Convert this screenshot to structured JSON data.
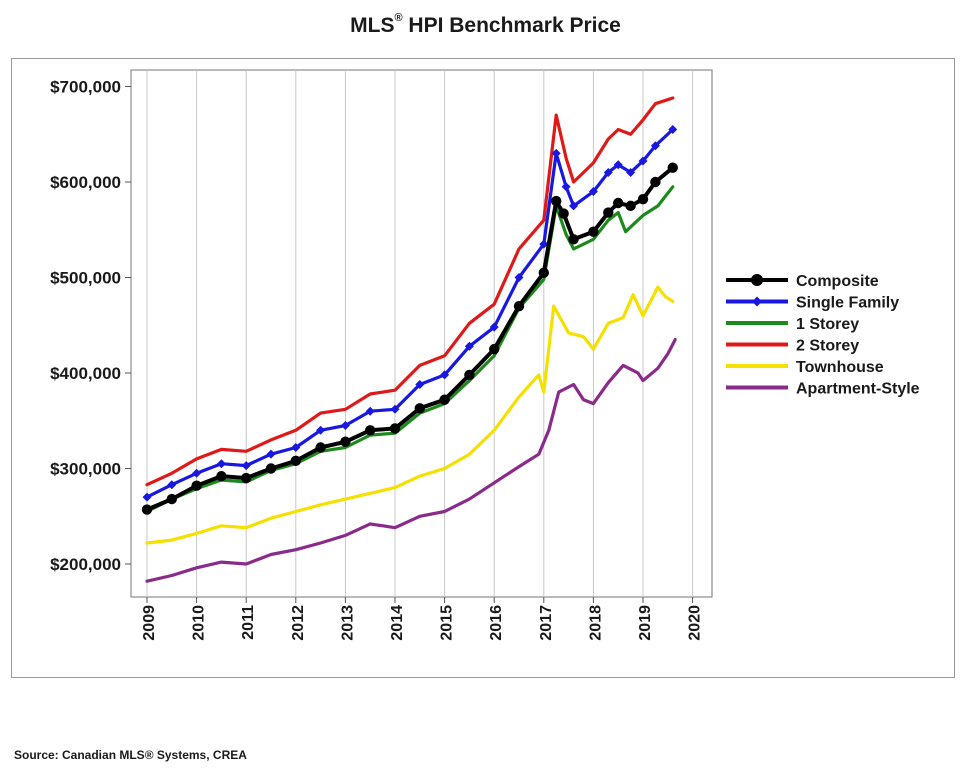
{
  "title": {
    "main": "MLS",
    "mark": "®",
    "rest": " HPI Benchmark Price"
  },
  "source": "Source: Canadian MLS® Systems, CREA",
  "chart_data": {
    "type": "line",
    "title": "MLS® HPI Benchmark Price",
    "xlabel": "",
    "ylabel": "",
    "xlim": [
      2009,
      2020
    ],
    "ylim": [
      180000,
      715000
    ],
    "x_ticks": [
      "2009",
      "2010",
      "2011",
      "2012",
      "2013",
      "2014",
      "2015",
      "2016",
      "2017",
      "2018",
      "2019",
      "2020"
    ],
    "y_ticks": [
      {
        "value": 200000,
        "label": "$200,000"
      },
      {
        "value": 300000,
        "label": "$300,000"
      },
      {
        "value": 400000,
        "label": "$400,000"
      },
      {
        "value": 500000,
        "label": "$500,000"
      },
      {
        "value": 600000,
        "label": "$600,000"
      },
      {
        "value": 700000,
        "label": "$700,000"
      }
    ],
    "grid": "vertical",
    "legend_position": "right",
    "series": [
      {
        "name": "Composite",
        "color": "#000000",
        "marker": "circle",
        "points": [
          [
            2009,
            257000
          ],
          [
            2009.5,
            268000
          ],
          [
            2010,
            282000
          ],
          [
            2010.5,
            292000
          ],
          [
            2011,
            290000
          ],
          [
            2011.5,
            300000
          ],
          [
            2012,
            308000
          ],
          [
            2012.5,
            322000
          ],
          [
            2013,
            328000
          ],
          [
            2013.5,
            340000
          ],
          [
            2014,
            342000
          ],
          [
            2014.5,
            363000
          ],
          [
            2015,
            372000
          ],
          [
            2015.5,
            398000
          ],
          [
            2016,
            425000
          ],
          [
            2016.5,
            470000
          ],
          [
            2017,
            505000
          ],
          [
            2017.25,
            580000
          ],
          [
            2017.4,
            567000
          ],
          [
            2017.6,
            540000
          ],
          [
            2018,
            548000
          ],
          [
            2018.3,
            568000
          ],
          [
            2018.5,
            578000
          ],
          [
            2018.75,
            575000
          ],
          [
            2019,
            582000
          ],
          [
            2019.25,
            600000
          ],
          [
            2019.6,
            615000
          ]
        ]
      },
      {
        "name": "Single Family",
        "color": "#1818e0",
        "marker": "diamond",
        "points": [
          [
            2009,
            270000
          ],
          [
            2009.5,
            283000
          ],
          [
            2010,
            295000
          ],
          [
            2010.5,
            305000
          ],
          [
            2011,
            303000
          ],
          [
            2011.5,
            315000
          ],
          [
            2012,
            322000
          ],
          [
            2012.5,
            340000
          ],
          [
            2013,
            345000
          ],
          [
            2013.5,
            360000
          ],
          [
            2014,
            362000
          ],
          [
            2014.5,
            388000
          ],
          [
            2015,
            398000
          ],
          [
            2015.5,
            428000
          ],
          [
            2016,
            448000
          ],
          [
            2016.5,
            500000
          ],
          [
            2017,
            535000
          ],
          [
            2017.25,
            630000
          ],
          [
            2017.45,
            595000
          ],
          [
            2017.6,
            575000
          ],
          [
            2018,
            590000
          ],
          [
            2018.3,
            610000
          ],
          [
            2018.5,
            618000
          ],
          [
            2018.75,
            610000
          ],
          [
            2019,
            622000
          ],
          [
            2019.25,
            638000
          ],
          [
            2019.6,
            655000
          ]
        ]
      },
      {
        "name": "1 Storey",
        "color": "#1b8a1b",
        "marker": "",
        "points": [
          [
            2009,
            255000
          ],
          [
            2009.5,
            268000
          ],
          [
            2010,
            279000
          ],
          [
            2010.5,
            288000
          ],
          [
            2011,
            286000
          ],
          [
            2011.5,
            298000
          ],
          [
            2012,
            305000
          ],
          [
            2012.5,
            318000
          ],
          [
            2013,
            322000
          ],
          [
            2013.5,
            335000
          ],
          [
            2014,
            337000
          ],
          [
            2014.5,
            358000
          ],
          [
            2015,
            368000
          ],
          [
            2015.5,
            392000
          ],
          [
            2016,
            418000
          ],
          [
            2016.5,
            468000
          ],
          [
            2017,
            498000
          ],
          [
            2017.25,
            575000
          ],
          [
            2017.45,
            545000
          ],
          [
            2017.6,
            530000
          ],
          [
            2018,
            540000
          ],
          [
            2018.3,
            560000
          ],
          [
            2018.5,
            568000
          ],
          [
            2018.65,
            548000
          ],
          [
            2019,
            565000
          ],
          [
            2019.3,
            575000
          ],
          [
            2019.6,
            595000
          ]
        ]
      },
      {
        "name": "2 Storey",
        "color": "#e01818",
        "marker": "",
        "points": [
          [
            2009,
            283000
          ],
          [
            2009.5,
            295000
          ],
          [
            2010,
            310000
          ],
          [
            2010.5,
            320000
          ],
          [
            2011,
            318000
          ],
          [
            2011.5,
            330000
          ],
          [
            2012,
            340000
          ],
          [
            2012.5,
            358000
          ],
          [
            2013,
            362000
          ],
          [
            2013.5,
            378000
          ],
          [
            2014,
            382000
          ],
          [
            2014.5,
            408000
          ],
          [
            2015,
            418000
          ],
          [
            2015.5,
            452000
          ],
          [
            2016,
            472000
          ],
          [
            2016.5,
            530000
          ],
          [
            2017,
            560000
          ],
          [
            2017.25,
            670000
          ],
          [
            2017.45,
            625000
          ],
          [
            2017.6,
            600000
          ],
          [
            2018,
            620000
          ],
          [
            2018.3,
            645000
          ],
          [
            2018.5,
            655000
          ],
          [
            2018.75,
            650000
          ],
          [
            2019,
            665000
          ],
          [
            2019.25,
            682000
          ],
          [
            2019.6,
            688000
          ]
        ]
      },
      {
        "name": "Townhouse",
        "color": "#f5e000",
        "marker": "",
        "points": [
          [
            2009,
            222000
          ],
          [
            2009.5,
            225000
          ],
          [
            2010,
            232000
          ],
          [
            2010.5,
            240000
          ],
          [
            2011,
            238000
          ],
          [
            2011.5,
            248000
          ],
          [
            2012,
            255000
          ],
          [
            2012.5,
            262000
          ],
          [
            2013,
            268000
          ],
          [
            2013.5,
            274000
          ],
          [
            2014,
            280000
          ],
          [
            2014.5,
            292000
          ],
          [
            2015,
            300000
          ],
          [
            2015.5,
            315000
          ],
          [
            2016,
            340000
          ],
          [
            2016.5,
            375000
          ],
          [
            2016.9,
            398000
          ],
          [
            2017,
            380000
          ],
          [
            2017.2,
            470000
          ],
          [
            2017.5,
            442000
          ],
          [
            2017.8,
            438000
          ],
          [
            2018,
            425000
          ],
          [
            2018.3,
            452000
          ],
          [
            2018.6,
            458000
          ],
          [
            2018.8,
            482000
          ],
          [
            2019,
            460000
          ],
          [
            2019.3,
            490000
          ],
          [
            2019.45,
            480000
          ],
          [
            2019.6,
            475000
          ]
        ]
      },
      {
        "name": "Apartment-Style",
        "color": "#8a2a8a",
        "marker": "",
        "points": [
          [
            2009,
            182000
          ],
          [
            2009.5,
            188000
          ],
          [
            2010,
            196000
          ],
          [
            2010.5,
            202000
          ],
          [
            2011,
            200000
          ],
          [
            2011.5,
            210000
          ],
          [
            2012,
            215000
          ],
          [
            2012.5,
            222000
          ],
          [
            2013,
            230000
          ],
          [
            2013.5,
            242000
          ],
          [
            2014,
            238000
          ],
          [
            2014.5,
            250000
          ],
          [
            2015,
            255000
          ],
          [
            2015.5,
            268000
          ],
          [
            2016,
            285000
          ],
          [
            2016.5,
            302000
          ],
          [
            2016.9,
            315000
          ],
          [
            2017.1,
            340000
          ],
          [
            2017.3,
            380000
          ],
          [
            2017.6,
            388000
          ],
          [
            2017.8,
            372000
          ],
          [
            2018,
            368000
          ],
          [
            2018.3,
            390000
          ],
          [
            2018.6,
            408000
          ],
          [
            2018.9,
            400000
          ],
          [
            2019,
            392000
          ],
          [
            2019.3,
            405000
          ],
          [
            2019.5,
            420000
          ],
          [
            2019.65,
            435000
          ]
        ]
      }
    ]
  }
}
